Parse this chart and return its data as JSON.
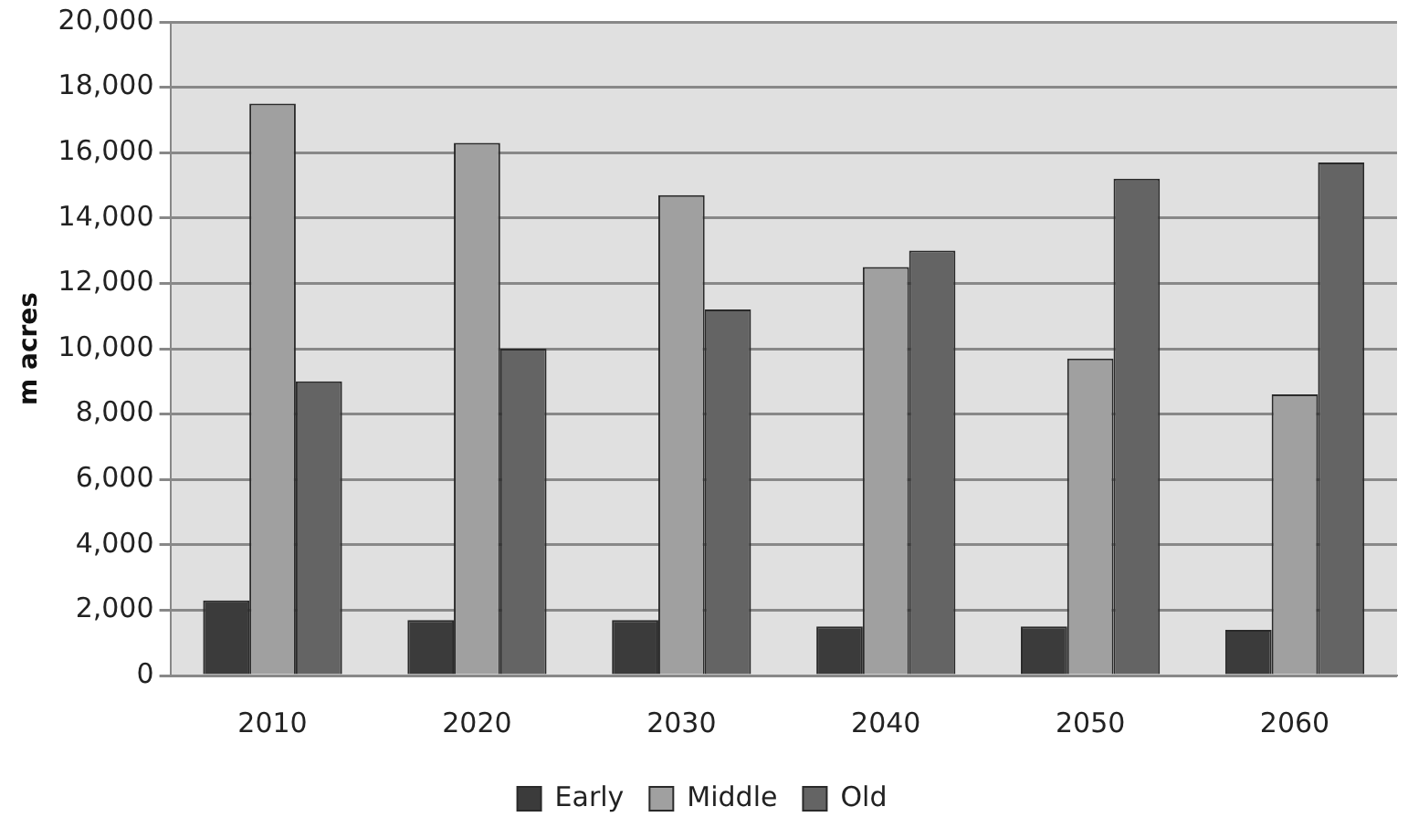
{
  "chart_data": {
    "type": "bar",
    "ylabel": "m acres",
    "categories": [
      "2010",
      "2020",
      "2030",
      "2040",
      "2050",
      "2060"
    ],
    "series": [
      {
        "name": "Early",
        "color": "#3b3b3b",
        "values": [
          2300,
          1700,
          1700,
          1500,
          1500,
          1400
        ]
      },
      {
        "name": "Middle",
        "color": "#a0a0a0",
        "values": [
          17500,
          16300,
          14700,
          12500,
          9700,
          8600
        ]
      },
      {
        "name": "Old",
        "color": "#646464",
        "values": [
          9000,
          10000,
          11200,
          13000,
          15200,
          15700
        ]
      }
    ],
    "ylim": [
      0,
      20000
    ],
    "yticks": [
      {
        "value": 0,
        "label": "0"
      },
      {
        "value": 2000,
        "label": "2,000"
      },
      {
        "value": 4000,
        "label": "4,000"
      },
      {
        "value": 6000,
        "label": "6,000"
      },
      {
        "value": 8000,
        "label": "8,000"
      },
      {
        "value": 10000,
        "label": "10,000"
      },
      {
        "value": 12000,
        "label": "12,000"
      },
      {
        "value": 14000,
        "label": "14,000"
      },
      {
        "value": 16000,
        "label": "16,000"
      },
      {
        "value": 18000,
        "label": "18,000"
      },
      {
        "value": 20000,
        "label": "20,000"
      }
    ],
    "grid": "y",
    "legend": "bottom"
  }
}
